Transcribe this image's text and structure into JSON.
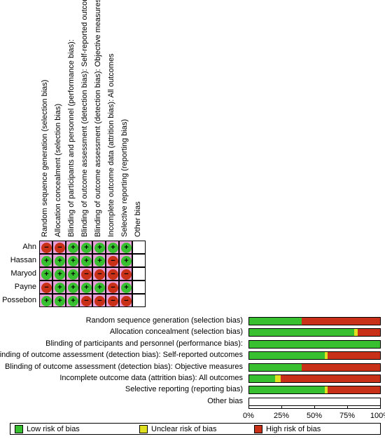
{
  "colors": {
    "low": "#38c030",
    "unclear": "#e0e020",
    "high": "#c83018",
    "pink": "#e8a0d8"
  },
  "domains": [
    "Random sequence generation (selection bias)",
    "Allocation concealment (selection bias)",
    "Blinding of participants and personnel (performance bias):",
    "Blinding of outcome assessment (detection bias): Self-reported outcomes",
    "Blinding of outcome assessment (detection bias): Objective measures",
    "Incomplete outcome data (attrition bias): All outcomes",
    "Selective reporting (reporting bias)",
    "Other bias"
  ],
  "studies": [
    {
      "name": "Ahn",
      "judgements": [
        "high",
        "high",
        "low",
        "low",
        "low",
        "low",
        "low",
        ""
      ]
    },
    {
      "name": "Hassan",
      "judgements": [
        "low",
        "low",
        "low",
        "low",
        "low",
        "high",
        "low",
        ""
      ]
    },
    {
      "name": "Maryod",
      "judgements": [
        "low",
        "low",
        "low",
        "high",
        "high",
        "high",
        "high",
        ""
      ]
    },
    {
      "name": "Payne",
      "judgements": [
        "high",
        "low",
        "low",
        "low",
        "low",
        "high",
        "low",
        ""
      ]
    },
    {
      "name": "Possebon",
      "judgements": [
        "low",
        "low",
        "low",
        "high",
        "high",
        "high",
        "high",
        ""
      ]
    }
  ],
  "symbols": {
    "low": "+",
    "high": "−"
  },
  "chart_data": {
    "type": "bar",
    "categories": [
      "Random sequence generation (selection bias)",
      "Allocation concealment (selection bias)",
      "Blinding of participants and personnel (performance bias):",
      "Blinding of outcome assessment (detection bias): Self-reported outcomes",
      "Blinding of outcome assessment (detection bias): Objective measures",
      "Incomplete outcome data (attrition bias): All outcomes",
      "Selective reporting (reporting bias)",
      "Other bias"
    ],
    "series": [
      {
        "name": "Low risk of bias",
        "values": [
          40,
          80,
          100,
          58,
          40,
          20,
          58,
          0
        ]
      },
      {
        "name": "Unclear risk of bias",
        "values": [
          0,
          3,
          0,
          2,
          0,
          4,
          2,
          0
        ]
      },
      {
        "name": "High risk of bias",
        "values": [
          60,
          17,
          0,
          40,
          60,
          76,
          40,
          0
        ]
      }
    ],
    "x_ticks": [
      "0%",
      "25%",
      "50%",
      "75%",
      "100%"
    ],
    "xlim": [
      0,
      100
    ],
    "stacked": true,
    "orientation": "horizontal",
    "legend_position": "bottom"
  },
  "legend": {
    "low": "Low risk of bias",
    "unclear": "Unclear risk of bias",
    "high": "High risk of bias"
  }
}
